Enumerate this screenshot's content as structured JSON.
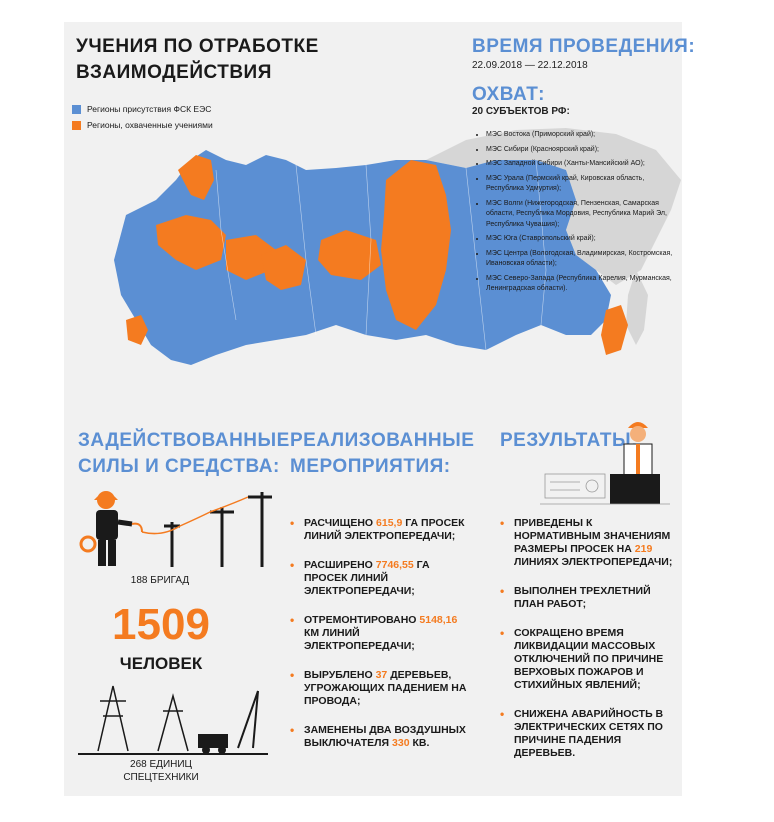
{
  "title": {
    "line1": "УЧЕНИЯ ПО ОТРАБОТКЕ",
    "line2": "ВЗАИМОДЕЙСТВИЯ"
  },
  "legend": {
    "blue_label": "Регионы присутствия ФСК ЕЭС",
    "orange_label": "Регионы, охваченные учениями",
    "blue_color": "#5b8fd3",
    "orange_color": "#f47b20"
  },
  "time": {
    "heading": "ВРЕМЯ ПРОВЕДЕНИЯ:",
    "value": "22.09.2018 — 22.12.2018"
  },
  "coverage": {
    "heading": "ОХВАТ:",
    "subheading": "20 СУБЪЕКТОВ РФ:",
    "items": [
      "МЭС Востока (Приморский край);",
      "МЭС Сибири (Красноярский край);",
      "МЭС Западной Сибири (Ханты-Мансийский АО);",
      "МЭС Урала (Пермский край, Кировская область, Республика Удмуртия);",
      "МЭС Волги (Нижегородская, Пензенская, Самарская области, Республика Мордовия, Республика Марий Эл, Республика Чувашия);",
      "МЭС Юга (Ставропольский край);",
      "МЭС Центра (Вологодская, Владимирская, Костромская, Ивановская области);",
      "МЭС Северо-Запада (Республика Карелия, Мурманская, Ленинградская области)."
    ]
  },
  "forces": {
    "heading_line1": "ЗАДЕЙСТВОВАННЫЕ",
    "heading_line2": "СИЛЫ И СРЕДСТВА:",
    "brigades": "188 БРИГАД",
    "people_count": "1509",
    "people_label": "ЧЕЛОВЕК",
    "units_line1": "268 ЕДИНИЦ",
    "units_line2": "СПЕЦТЕХНИКИ"
  },
  "activities": {
    "heading_line1": "РЕАЛИЗОВАННЫЕ",
    "heading_line2": "МЕРОПРИЯТИЯ:",
    "items": [
      {
        "pre": "РАСЧИЩЕНО ",
        "num": "615,9",
        "post": " ГА ПРОСЕК ЛИНИЙ ЭЛЕКТРОПЕРЕДАЧИ;"
      },
      {
        "pre": "РАСШИРЕНО ",
        "num": "7746,55",
        "post": " ГА ПРОСЕК ЛИНИЙ ЭЛЕКТРОПЕРЕДАЧИ;"
      },
      {
        "pre": "ОТРЕМОНТИРОВАНО ",
        "num": "5148,16",
        "post": " КМ ЛИНИЙ ЭЛЕКТРОПЕРЕДАЧИ;"
      },
      {
        "pre": "ВЫРУБЛЕНО ",
        "num": "37",
        "post": " ДЕРЕВЬЕВ, УГРОЖАЮЩИХ ПАДЕНИЕМ НА ПРОВОДА;"
      },
      {
        "pre": "ЗАМЕНЕНЫ ДВА ВОЗДУШНЫХ ВЫКЛЮЧАТЕЛЯ ",
        "num": "330",
        "post": " КВ."
      }
    ]
  },
  "results": {
    "heading": "РЕЗУЛЬТАТЫ:",
    "items": [
      {
        "pre": "ПРИВЕДЕНЫ К НОРМАТИВНЫМ ЗНАЧЕНИЯМ РАЗМЕРЫ ПРОСЕК НА ",
        "num": "219",
        "post": " ЛИНИЯХ ЭЛЕКТРОПЕРЕДАЧИ;"
      },
      {
        "pre": "ВЫПОЛНЕН ТРЕХЛЕТНИЙ ПЛАН РАБОТ;",
        "num": "",
        "post": ""
      },
      {
        "pre": "СОКРАЩЕНО ВРЕМЯ ЛИКВИДАЦИИ МАССОВЫХ ОТКЛЮЧЕНИЙ ПО ПРИЧИНЕ ВЕРХОВЫХ ПОЖАРОВ И СТИХИЙНЫХ ЯВЛЕНИЙ;",
        "num": "",
        "post": ""
      },
      {
        "pre": "СНИЖЕНА АВАРИЙНОСТЬ В ЭЛЕКТРИЧЕСКИХ СЕТЯХ ПО ПРИЧИНЕ ПАДЕНИЯ ДЕРЕВЬЕВ.",
        "num": "",
        "post": ""
      }
    ]
  }
}
